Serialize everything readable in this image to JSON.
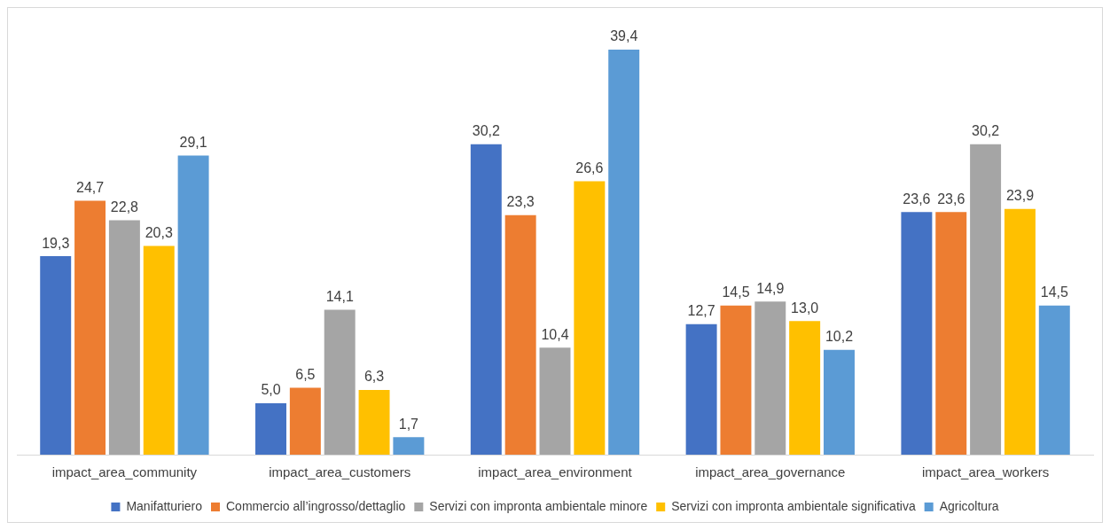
{
  "chart_data": {
    "type": "bar",
    "categories": [
      "impact_area_community",
      "impact_area_customers",
      "impact_area_environment",
      "impact_area_governance",
      "impact_area_workers"
    ],
    "series": [
      {
        "name": "Manifatturiero",
        "color": "#4472c4",
        "values": [
          19.3,
          5.0,
          30.2,
          12.7,
          23.6
        ],
        "value_labels": [
          "19,3",
          "5,0",
          "30,2",
          "12,7",
          "23,6"
        ]
      },
      {
        "name": "Commercio all’ingrosso/dettaglio",
        "color": "#ed7d31",
        "values": [
          24.7,
          6.5,
          23.3,
          14.5,
          23.6
        ],
        "value_labels": [
          "24,7",
          "6,5",
          "23,3",
          "14,5",
          "23,6"
        ]
      },
      {
        "name": "Servizi con impronta ambientale minore",
        "color": "#a5a5a5",
        "values": [
          22.8,
          14.1,
          10.4,
          14.9,
          30.2
        ],
        "value_labels": [
          "22,8",
          "14,1",
          "10,4",
          "14,9",
          "30,2"
        ]
      },
      {
        "name": "Servizi con impronta ambientale significativa",
        "color": "#ffc000",
        "values": [
          20.3,
          6.3,
          26.6,
          13.0,
          23.9
        ],
        "value_labels": [
          "20,3",
          "6,3",
          "26,6",
          "13,0",
          "23,9"
        ]
      },
      {
        "name": "Agricoltura",
        "color": "#5b9bd5",
        "values": [
          29.1,
          1.7,
          39.4,
          10.2,
          14.5
        ],
        "value_labels": [
          "29,1",
          "1,7",
          "39,4",
          "10,2",
          "14,5"
        ]
      }
    ],
    "grid": false,
    "legend": "bottom"
  }
}
